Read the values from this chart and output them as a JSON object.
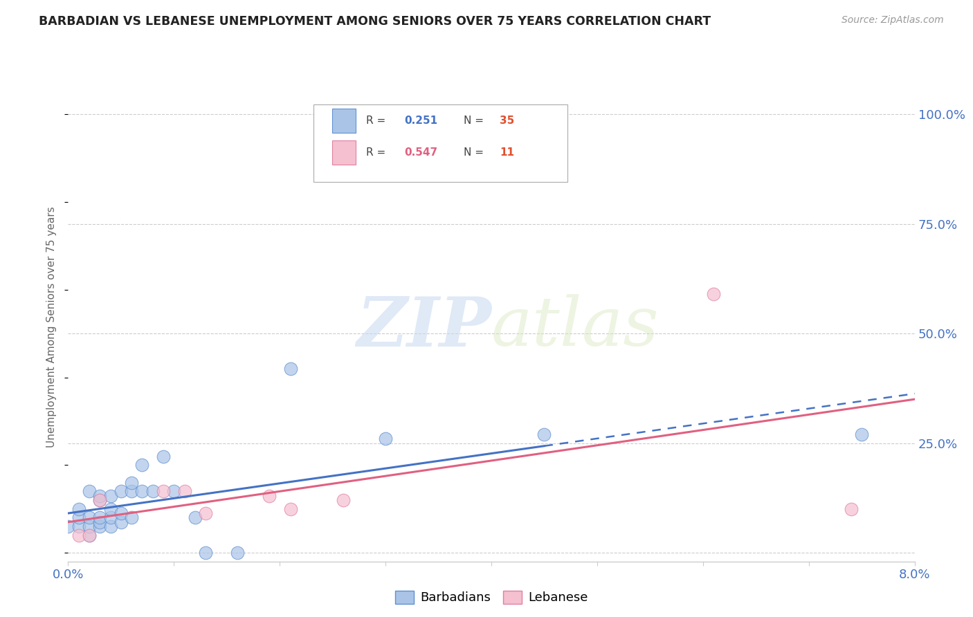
{
  "title": "BARBADIAN VS LEBANESE UNEMPLOYMENT AMONG SENIORS OVER 75 YEARS CORRELATION CHART",
  "source": "Source: ZipAtlas.com",
  "ylabel": "Unemployment Among Seniors over 75 years",
  "xlim": [
    0.0,
    0.08
  ],
  "ylim": [
    -0.02,
    1.05
  ],
  "x_ticks": [
    0.0,
    0.01,
    0.02,
    0.03,
    0.04,
    0.05,
    0.06,
    0.07,
    0.08
  ],
  "x_tick_labels": [
    "0.0%",
    "",
    "",
    "",
    "",
    "",
    "",
    "",
    "8.0%"
  ],
  "y_tick_positions": [
    0.0,
    0.25,
    0.5,
    0.75,
    1.0
  ],
  "y_tick_labels": [
    "",
    "25.0%",
    "50.0%",
    "75.0%",
    "100.0%"
  ],
  "barbadian_color": "#aac4e8",
  "barbadian_edge_color": "#6090d0",
  "barbadian_line_color": "#4472c4",
  "lebanese_color": "#f5c0d0",
  "lebanese_edge_color": "#e080a0",
  "lebanese_line_color": "#e06080",
  "barbadian_R": 0.251,
  "barbadian_N": 35,
  "lebanese_R": 0.547,
  "lebanese_N": 11,
  "barbadian_x": [
    0.0,
    0.001,
    0.001,
    0.001,
    0.002,
    0.002,
    0.002,
    0.002,
    0.003,
    0.003,
    0.003,
    0.003,
    0.003,
    0.004,
    0.004,
    0.004,
    0.004,
    0.005,
    0.005,
    0.005,
    0.006,
    0.006,
    0.006,
    0.007,
    0.007,
    0.008,
    0.009,
    0.01,
    0.012,
    0.013,
    0.016,
    0.021,
    0.03,
    0.045,
    0.075
  ],
  "barbadian_y": [
    0.06,
    0.06,
    0.08,
    0.1,
    0.04,
    0.06,
    0.08,
    0.14,
    0.06,
    0.07,
    0.08,
    0.12,
    0.13,
    0.06,
    0.08,
    0.1,
    0.13,
    0.07,
    0.09,
    0.14,
    0.08,
    0.14,
    0.16,
    0.14,
    0.2,
    0.14,
    0.22,
    0.14,
    0.08,
    0.0,
    0.0,
    0.42,
    0.26,
    0.27,
    0.27
  ],
  "lebanese_x": [
    0.001,
    0.002,
    0.003,
    0.009,
    0.011,
    0.013,
    0.019,
    0.021,
    0.026,
    0.061,
    0.074
  ],
  "lebanese_y": [
    0.04,
    0.04,
    0.12,
    0.14,
    0.14,
    0.09,
    0.13,
    0.1,
    0.12,
    0.59,
    0.1
  ],
  "watermark_zip": "ZIP",
  "watermark_atlas": "atlas",
  "background_color": "#ffffff",
  "grid_color": "#cccccc",
  "tick_color": "#4472c4",
  "spine_color": "#cccccc"
}
